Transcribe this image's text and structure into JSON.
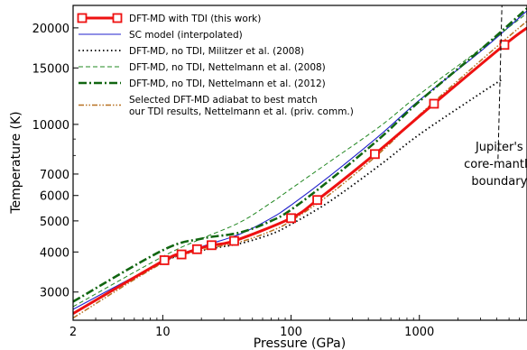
{
  "chart_data": {
    "type": "line",
    "xlabel": "Pressure (GPa)",
    "ylabel": "Temperature (K)",
    "xscale": "log",
    "yscale": "log",
    "xlim": [
      2,
      6900
    ],
    "ylim": [
      2450,
      23500
    ],
    "grid": false,
    "legend_position": "top-left",
    "xticks": [
      {
        "value": 2,
        "label": "2"
      },
      {
        "value": 10,
        "label": "10"
      },
      {
        "value": 100,
        "label": "100"
      },
      {
        "value": 1000,
        "label": "1000"
      }
    ],
    "yticks": [
      {
        "value": 3000,
        "label": "3000"
      },
      {
        "value": 4000,
        "label": "4000"
      },
      {
        "value": 5000,
        "label": "5000"
      },
      {
        "value": 6000,
        "label": "6000"
      },
      {
        "value": 7000,
        "label": "7000"
      },
      {
        "value": 10000,
        "label": "10000"
      },
      {
        "value": 15000,
        "label": "15000"
      },
      {
        "value": 20000,
        "label": "20000"
      }
    ],
    "series": [
      {
        "name": "DFT-MD with TDI (this work)",
        "color": "#ee1111",
        "style": "solid-thick-markers",
        "x": [
          2,
          10.3,
          14,
          18.5,
          24,
          36,
          100,
          160,
          450,
          1300,
          4600,
          6900
        ],
        "y": [
          2570,
          3770,
          3930,
          4080,
          4200,
          4330,
          5100,
          5810,
          8080,
          11600,
          17700,
          20000
        ],
        "marker_points": [
          1,
          2,
          3,
          4,
          5,
          6,
          7,
          8,
          9,
          10
        ]
      },
      {
        "name": "SC model (interpolated)",
        "color": "#2222cc",
        "style": "solid-thin",
        "x": [
          2,
          10,
          20,
          40,
          70,
          100,
          200,
          500,
          1000,
          3000,
          6900
        ],
        "y": [
          2650,
          3720,
          4150,
          4550,
          5100,
          5600,
          6900,
          9300,
          11900,
          16900,
          22600
        ]
      },
      {
        "name": "DFT-MD, no TDI, Militzer et al. (2008)",
        "color": "#000000",
        "style": "dotted",
        "x": [
          2,
          10,
          20,
          40,
          70,
          100,
          200,
          500,
          1000,
          3000,
          4400
        ],
        "y": [
          2580,
          3720,
          4040,
          4250,
          4550,
          4880,
          5750,
          7500,
          9300,
          12500,
          13800
        ]
      },
      {
        "name": "DFT-MD, no TDI, Nettelmann et al. (2008)",
        "color": "#228822",
        "style": "dashed-thin",
        "x": [
          2,
          10,
          20,
          40,
          70,
          100,
          200,
          500,
          1000,
          3000,
          6900
        ],
        "y": [
          2700,
          3870,
          4400,
          4950,
          5700,
          6300,
          7650,
          9900,
          12400,
          17200,
          22200
        ]
      },
      {
        "name": "DFT-MD, no TDI, Nettelmann et al. (2012)",
        "color": "#116611",
        "style": "dash-dot-thick",
        "x": [
          2,
          10,
          20,
          40,
          70,
          100,
          200,
          500,
          1000,
          3000,
          6900
        ],
        "y": [
          2800,
          4050,
          4400,
          4600,
          5000,
          5420,
          6700,
          9100,
          11800,
          17100,
          23000
        ]
      },
      {
        "name": "Selected DFT-MD adiabat to best match our TDI results, Nettelmann et al. (priv. comm.)",
        "legend_lines": [
          "Selected DFT-MD adiabat to best match",
          "our TDI results, Nettelmann et al. (priv. comm.)"
        ],
        "color": "#b87020",
        "style": "dash-dot-dot",
        "x": [
          2,
          10,
          20,
          40,
          70,
          100,
          200,
          500,
          1000,
          3000,
          6900
        ],
        "y": [
          2490,
          3700,
          4050,
          4300,
          4650,
          5000,
          6050,
          8200,
          10700,
          15800,
          21000
        ]
      }
    ],
    "annotations": [
      {
        "text_lines": [
          "Jupiter's",
          "core-mantle",
          "boundary"
        ],
        "x": 4200,
        "y": 6900,
        "line_from": [
          4100,
          7800
        ],
        "line_to": [
          4400,
          23500
        ],
        "style": "dashed-black"
      }
    ]
  }
}
